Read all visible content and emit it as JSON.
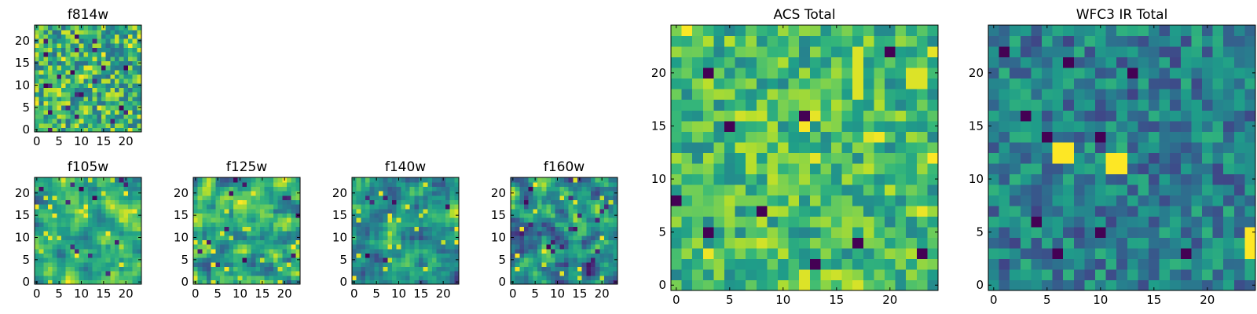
{
  "figure": {
    "colormap": "viridis",
    "colors": {
      "frame": "#000000",
      "background": "#ffffff"
    }
  },
  "chart_data": [
    {
      "type": "heatmap",
      "id": "f814w",
      "title": "f814w",
      "grid": [
        24,
        24
      ],
      "xlim": [
        0,
        24
      ],
      "ylim": [
        0,
        24
      ],
      "xticks": [
        0,
        5,
        10,
        15,
        20
      ],
      "yticks": [
        0,
        5,
        10,
        15,
        20
      ],
      "pattern": "noisy speckle, mostly green/yellow with scattered dark-blue and yellow pixels"
    },
    {
      "type": "heatmap",
      "id": "f105w",
      "title": "f105w",
      "grid": [
        24,
        24
      ],
      "xlim": [
        0,
        24
      ],
      "ylim": [
        0,
        24
      ],
      "xticks": [
        0,
        5,
        10,
        15,
        20
      ],
      "yticks": [
        0,
        5,
        10,
        15,
        20
      ],
      "pattern": "smoothed blotches, mostly green with yellow patches and a few dark pixels"
    },
    {
      "type": "heatmap",
      "id": "f125w",
      "title": "f125w",
      "grid": [
        24,
        24
      ],
      "xlim": [
        0,
        24
      ],
      "ylim": [
        0,
        24
      ],
      "xticks": [
        0,
        5,
        10,
        15,
        20
      ],
      "yticks": [
        0,
        5,
        10,
        15,
        20
      ],
      "pattern": "smoothed blotches, green/yellow with scattered dark pixels"
    },
    {
      "type": "heatmap",
      "id": "f140w",
      "title": "f140w",
      "grid": [
        24,
        24
      ],
      "xlim": [
        0,
        24
      ],
      "ylim": [
        0,
        24
      ],
      "xticks": [
        0,
        5,
        10,
        15,
        20
      ],
      "yticks": [
        0,
        5,
        10,
        15,
        20
      ],
      "pattern": "smoothed blotches, green/teal with yellow spots"
    },
    {
      "type": "heatmap",
      "id": "f160w",
      "title": "f160w",
      "grid": [
        24,
        24
      ],
      "xlim": [
        0,
        24
      ],
      "ylim": [
        0,
        24
      ],
      "xticks": [
        0,
        5,
        10,
        15,
        20
      ],
      "yticks": [
        0,
        5,
        10,
        15,
        20
      ],
      "pattern": "smoothed blotches, darker teal/blue with yellow patches"
    },
    {
      "type": "heatmap",
      "id": "acs",
      "title": "ACS Total",
      "grid": [
        25,
        25
      ],
      "xlim": [
        0,
        25
      ],
      "ylim": [
        0,
        25
      ],
      "xticks": [
        0,
        5,
        10,
        15,
        20
      ],
      "yticks": [
        0,
        5,
        10,
        15,
        20
      ],
      "pattern": "blocky noise, mostly light green/yellow with a few dark-purple pixels",
      "highlights": [
        {
          "x": 17,
          "y": 18,
          "w": 1,
          "h": 5,
          "value": 0.95
        },
        {
          "x": 22,
          "y": 19,
          "w": 2,
          "h": 2,
          "value": 0.95
        },
        {
          "x": 12,
          "y": 0,
          "w": 1,
          "h": 2,
          "value": 0.95
        }
      ],
      "dark_pixels": [
        [
          3,
          20
        ],
        [
          5,
          15
        ],
        [
          8,
          7
        ],
        [
          0,
          8
        ],
        [
          3,
          5
        ],
        [
          13,
          2
        ],
        [
          17,
          4
        ],
        [
          23,
          3
        ],
        [
          20,
          22
        ],
        [
          12,
          16
        ]
      ]
    },
    {
      "type": "heatmap",
      "id": "wfc3",
      "title": "WFC3 IR Total",
      "grid": [
        25,
        25
      ],
      "xlim": [
        0,
        25
      ],
      "ylim": [
        0,
        25
      ],
      "xticks": [
        0,
        5,
        10,
        15,
        20
      ],
      "yticks": [
        0,
        5,
        10,
        15,
        20
      ],
      "pattern": "blocky noise, mostly dark teal/blue with two bright yellow blobs",
      "highlights": [
        {
          "x": 6,
          "y": 12,
          "w": 2,
          "h": 2,
          "value": 1.0
        },
        {
          "x": 11,
          "y": 11,
          "w": 2,
          "h": 2,
          "value": 1.0
        },
        {
          "x": 24,
          "y": 3,
          "w": 1,
          "h": 3,
          "value": 1.0
        }
      ],
      "dark_pixels": [
        [
          1,
          22
        ],
        [
          5,
          14
        ],
        [
          10,
          14
        ],
        [
          7,
          21
        ],
        [
          4,
          6
        ],
        [
          10,
          5
        ],
        [
          18,
          3
        ],
        [
          6,
          3
        ],
        [
          13,
          20
        ],
        [
          3,
          16
        ]
      ]
    }
  ]
}
